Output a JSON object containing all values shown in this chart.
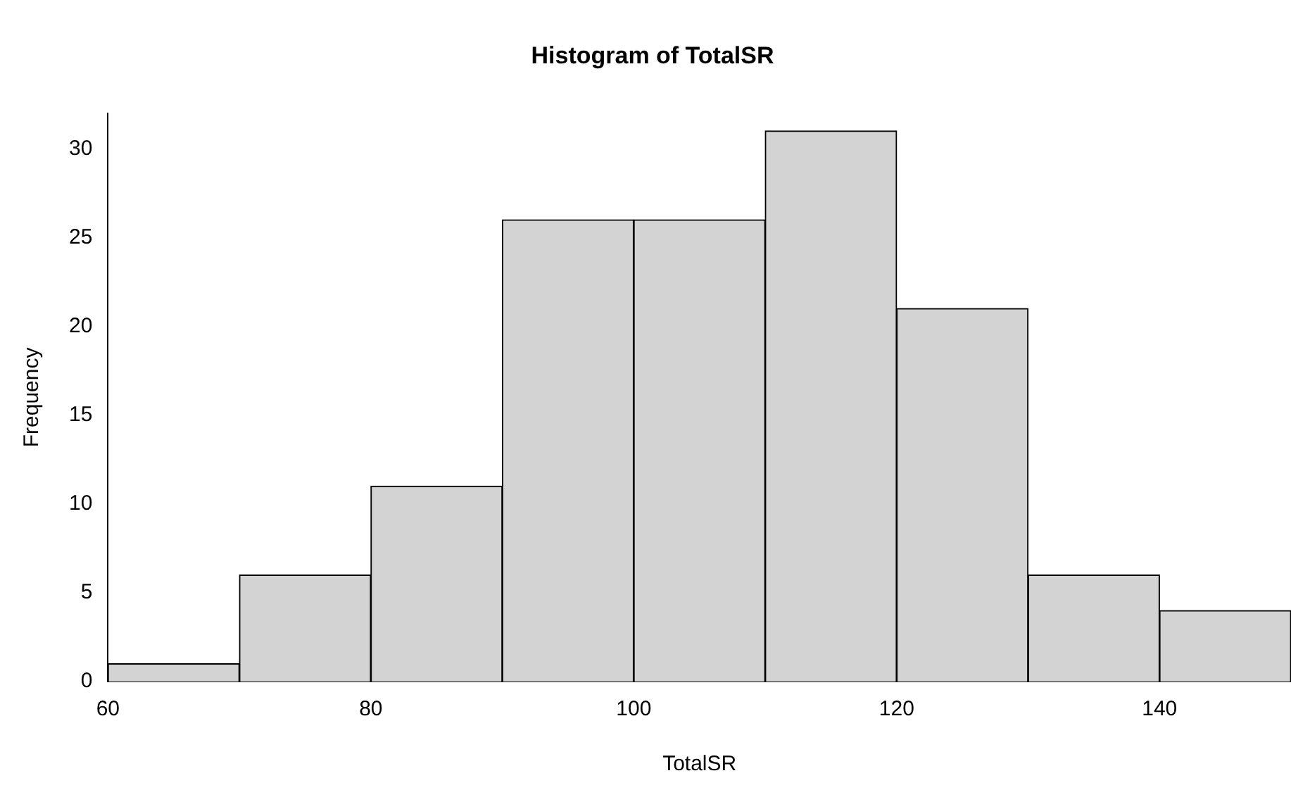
{
  "chart_data": {
    "type": "histogram",
    "title": "Histogram of TotalSR",
    "xlabel": "TotalSR",
    "ylabel": "Frequency",
    "bins": [
      60,
      70,
      80,
      90,
      100,
      110,
      120,
      130,
      140,
      150
    ],
    "values": [
      1,
      6,
      11,
      26,
      26,
      31,
      21,
      6,
      4
    ],
    "color": "#d3d3d3",
    "xlim": [
      60,
      150
    ],
    "xticks": [
      60,
      80,
      100,
      120,
      140
    ],
    "ylim": [
      0,
      32
    ],
    "yticks": [
      0,
      5,
      10,
      15,
      20,
      25,
      30
    ],
    "grid": false,
    "legend": false
  }
}
